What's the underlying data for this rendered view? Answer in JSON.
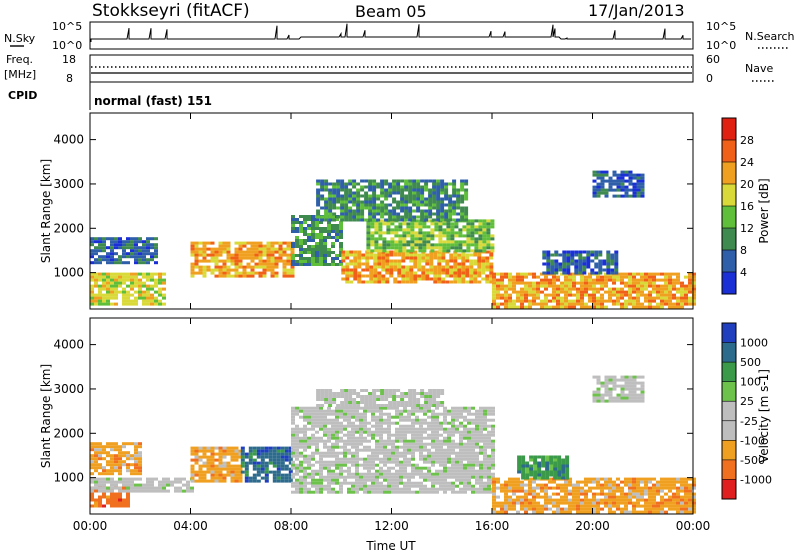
{
  "header": {
    "station": "Stokkseyri (fitACF)",
    "beam": "Beam 05",
    "date": "17/Jan/2013"
  },
  "strip_panels": {
    "nsky": {
      "left_label": "N.Sky",
      "left_ticks": [
        "10^5",
        "10^0"
      ],
      "right_label": "N.Search",
      "right_ticks": [
        "10^5",
        "10^0"
      ]
    },
    "freq": {
      "left_label_top": "Freq.",
      "left_label_unit": "[MHz]",
      "left_ticks": [
        "18",
        "8"
      ],
      "right_label": "Nave",
      "right_ticks": [
        "60",
        "0"
      ]
    },
    "cpid": {
      "left_label": "CPID",
      "value": "normal (fast) 151"
    }
  },
  "colors": {
    "power_scale": [
      "#1a2fd6",
      "#2e5fa8",
      "#3f8a4e",
      "#5fbf3a",
      "#d9d93a",
      "#f0a020",
      "#f06018",
      "#e02010"
    ],
    "velocity_scale": [
      "#1f3fbf",
      "#2d6b8c",
      "#3a9a4a",
      "#6cc24a",
      "#bebebe",
      "#bebebe",
      "#f0a020",
      "#f07020",
      "#e02020"
    ]
  },
  "chart_data": [
    {
      "type": "heatmap",
      "panel": "power",
      "xlabel": "Time UT",
      "ylabel": "Slant Range [km]",
      "ylim": [
        180,
        4600
      ],
      "y_ticks": [
        "1000",
        "2000",
        "3000",
        "4000"
      ],
      "x_ticks": [
        "00:00",
        "04:00",
        "08:00",
        "12:00",
        "16:00",
        "20:00",
        "00:00"
      ],
      "colorbar": {
        "label": "Power [dB]",
        "ticks": [
          "4",
          "8",
          "12",
          "16",
          "20",
          "24",
          "28"
        ]
      },
      "regions": [
        {
          "t0": 0.0,
          "t1": 3.0,
          "r0": 300,
          "r1": 1000,
          "level": 20
        },
        {
          "t0": 0.0,
          "t1": 2.6,
          "r0": 1250,
          "r1": 1800,
          "level": 8
        },
        {
          "t0": 4.0,
          "t1": 8.0,
          "r0": 950,
          "r1": 1700,
          "level": 24
        },
        {
          "t0": 8.0,
          "t1": 10.0,
          "r0": 1200,
          "r1": 2300,
          "level": 12
        },
        {
          "t0": 10.0,
          "t1": 16.0,
          "r0": 800,
          "r1": 1500,
          "level": 24
        },
        {
          "t0": 11.0,
          "t1": 16.0,
          "r0": 1500,
          "r1": 2200,
          "level": 16
        },
        {
          "t0": 9.0,
          "t1": 15.0,
          "r0": 2200,
          "r1": 3100,
          "level": 12
        },
        {
          "t0": 16.0,
          "t1": 24.0,
          "r0": 200,
          "r1": 1000,
          "level": 24
        },
        {
          "t0": 18.0,
          "t1": 21.0,
          "r0": 1000,
          "r1": 1500,
          "level": 8
        },
        {
          "t0": 20.0,
          "t1": 22.0,
          "r0": 2700,
          "r1": 3300,
          "level": 8
        }
      ]
    },
    {
      "type": "heatmap",
      "panel": "velocity",
      "xlabel": "Time UT",
      "ylabel": "Slant Range [km]",
      "ylim": [
        180,
        4600
      ],
      "y_ticks": [
        "1000",
        "2000",
        "3000",
        "4000"
      ],
      "x_ticks": [
        "00:00",
        "04:00",
        "08:00",
        "12:00",
        "16:00",
        "20:00",
        "00:00"
      ],
      "colorbar": {
        "label": "Velocity [m s-1]",
        "ticks": [
          "1000",
          "500",
          "100",
          "25",
          "-25",
          "-100",
          "-500",
          "-1000"
        ]
      },
      "regions": [
        {
          "t0": 0.0,
          "t1": 1.5,
          "r0": 350,
          "r1": 800,
          "level": -500
        },
        {
          "t0": 0.0,
          "t1": 4.0,
          "r0": 700,
          "r1": 1000,
          "level": 0
        },
        {
          "t0": 0.0,
          "t1": 2.0,
          "r0": 1100,
          "r1": 1800,
          "level": -100
        },
        {
          "t0": 4.0,
          "t1": 6.0,
          "r0": 900,
          "r1": 1700,
          "level": -100
        },
        {
          "t0": 6.0,
          "t1": 8.0,
          "r0": 900,
          "r1": 1700,
          "level": 500
        },
        {
          "t0": 8.0,
          "t1": 16.0,
          "r0": 700,
          "r1": 2600,
          "level": 0
        },
        {
          "t0": 9.0,
          "t1": 14.0,
          "r0": 2600,
          "r1": 3000,
          "level": 0
        },
        {
          "t0": 16.0,
          "t1": 24.0,
          "r0": 200,
          "r1": 1000,
          "level": -100
        },
        {
          "t0": 17.0,
          "t1": 19.0,
          "r0": 1000,
          "r1": 1500,
          "level": 100
        },
        {
          "t0": 20.0,
          "t1": 22.0,
          "r0": 2700,
          "r1": 3300,
          "level": 0
        }
      ]
    }
  ]
}
